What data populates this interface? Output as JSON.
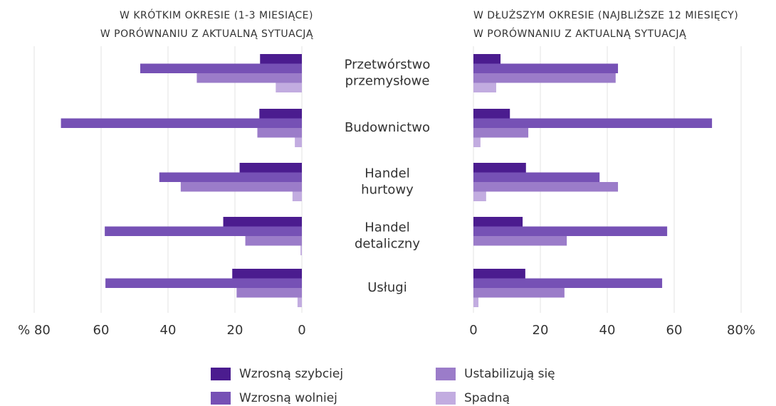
{
  "chart_data": {
    "type": "bar",
    "orientation": "horizontal",
    "categories": [
      [
        "Przetwórstwo",
        "przemysłowe"
      ],
      [
        "Budownictwo"
      ],
      [
        "Handel",
        "hurtowy"
      ],
      [
        "Handel",
        "detaliczny"
      ],
      [
        "Usługi"
      ]
    ],
    "series": [
      {
        "name": "Wzrosną szybciej",
        "color": "#4b1c8f"
      },
      {
        "name": "Wzrosną wolniej",
        "color": "#7651b5"
      },
      {
        "name": "Ustabilizują się",
        "color": "#9b7cc9"
      },
      {
        "name": "Spadną",
        "color": "#c2ace0"
      }
    ],
    "grid": true,
    "panels": [
      {
        "title": [
          "W KRÓTKIM OKRESIE (1-3 MIESIĄCE)",
          "W PORÓWNANIU Z AKTUALNĄ SYTUACJĄ"
        ],
        "xlim": [
          0,
          80
        ],
        "reversed": true,
        "xticks": [
          0,
          20,
          40,
          60,
          {
            "value": 80,
            "label": "% 80"
          }
        ],
        "values": [
          [
            12.5,
            12.7,
            18.6,
            23.5,
            20.8
          ],
          [
            48.3,
            72,
            42.6,
            58.9,
            58.7
          ],
          [
            31.4,
            13.3,
            36.2,
            16.9,
            19.5
          ],
          [
            7.8,
            2.1,
            2.8,
            0.4,
            1.3
          ]
        ]
      },
      {
        "title": [
          "W DŁUŻSZYM OKRESIE (NAJBLIŻSZE 12 MIESIĘCY)",
          "W PORÓWNANIU Z AKTUALNĄ SYTUACJĄ"
        ],
        "xlim": [
          0,
          80
        ],
        "reversed": false,
        "xticks": [
          0,
          20,
          40,
          60,
          {
            "value": 80,
            "label": "80%"
          }
        ],
        "values": [
          [
            8.1,
            10.9,
            15.7,
            14.7,
            15.5
          ],
          [
            43.2,
            71.3,
            37.7,
            57.9,
            56.4
          ],
          [
            42.5,
            16.4,
            43.2,
            27.9,
            27.2
          ],
          [
            6.8,
            2.1,
            3.8,
            null,
            1.5
          ]
        ]
      }
    ]
  }
}
